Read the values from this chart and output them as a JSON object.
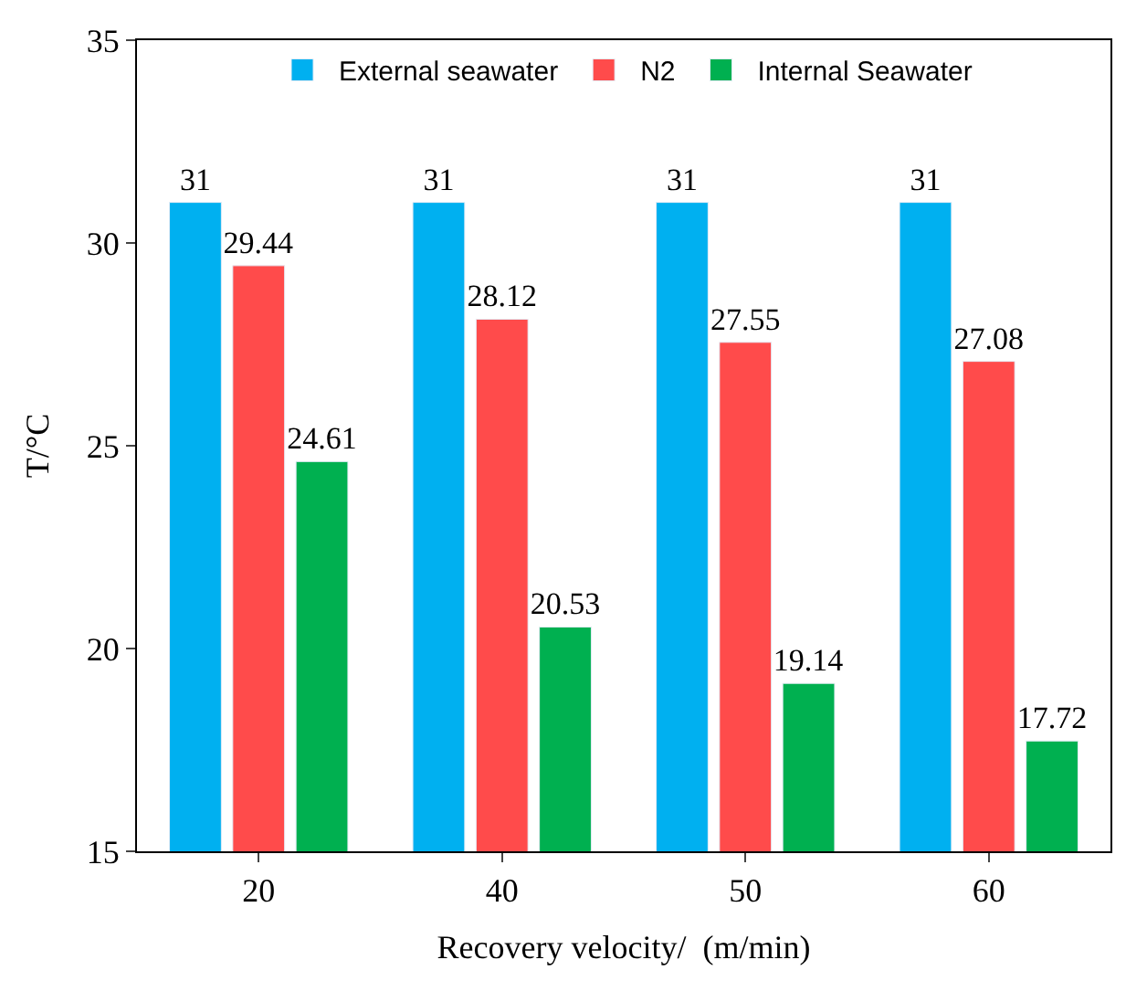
{
  "chart_data": {
    "type": "bar",
    "xlabel": "Recovery velocity/  (m/min)",
    "ylabel": "T/°C",
    "categories": [
      "20",
      "40",
      "50",
      "60"
    ],
    "series": [
      {
        "name": "External seawater",
        "color": "#00b0f0",
        "values": [
          31,
          31,
          31,
          31
        ]
      },
      {
        "name": "N2",
        "color": "#ff4b4b",
        "values": [
          29.44,
          28.12,
          27.55,
          27.08
        ]
      },
      {
        "name": "Internal Seawater",
        "color": "#00b050",
        "values": [
          24.61,
          20.53,
          19.14,
          17.72
        ]
      }
    ],
    "ylim": [
      15,
      35
    ],
    "yticks": [
      15,
      20,
      25,
      30,
      35
    ],
    "data_labels": true,
    "legend": "top"
  }
}
